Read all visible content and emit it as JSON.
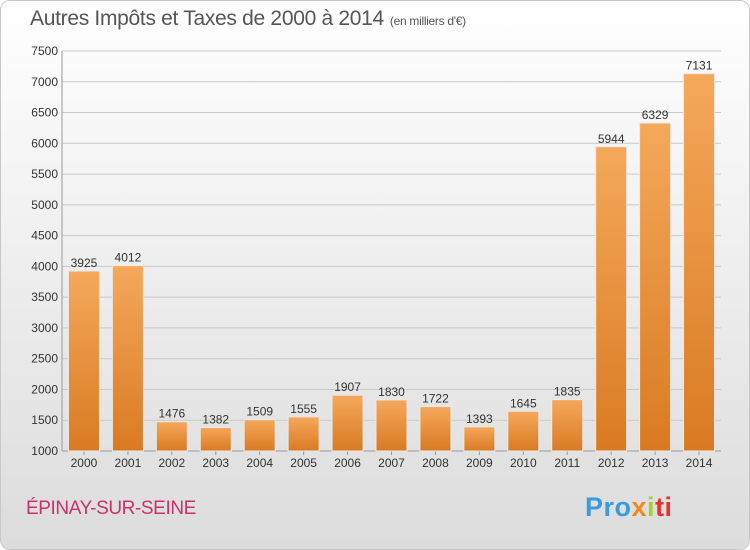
{
  "title": "Autres Impôts et Taxes de 2000 à 2014",
  "unit_label": "(en milliers d'€)",
  "city": "ÉPINAY-SUR-SEINE",
  "logo": {
    "text": "Proxiti",
    "parts": [
      "Pro",
      "x",
      "i",
      "ti"
    ]
  },
  "colors": {
    "bar_light": "#f5a85b",
    "bar_dark": "#d97a22",
    "grid": "#c9c9c9",
    "text": "#333333"
  },
  "chart_data": {
    "type": "bar",
    "title": "Autres Impôts et Taxes de 2000 à 2014",
    "xlabel": "",
    "ylabel": "",
    "ylim": [
      1000,
      7500
    ],
    "yticks": [
      1000,
      1500,
      2000,
      2500,
      3000,
      3500,
      4000,
      4500,
      5000,
      5500,
      6000,
      6500,
      7000,
      7500
    ],
    "categories": [
      "2000",
      "2001",
      "2002",
      "2003",
      "2004",
      "2005",
      "2006",
      "2007",
      "2008",
      "2009",
      "2010",
      "2011",
      "2012",
      "2013",
      "2014"
    ],
    "values": [
      3925,
      4012,
      1476,
      1382,
      1509,
      1555,
      1907,
      1830,
      1722,
      1393,
      1645,
      1835,
      5944,
      6329,
      7131
    ],
    "grid": true,
    "legend": "none"
  }
}
